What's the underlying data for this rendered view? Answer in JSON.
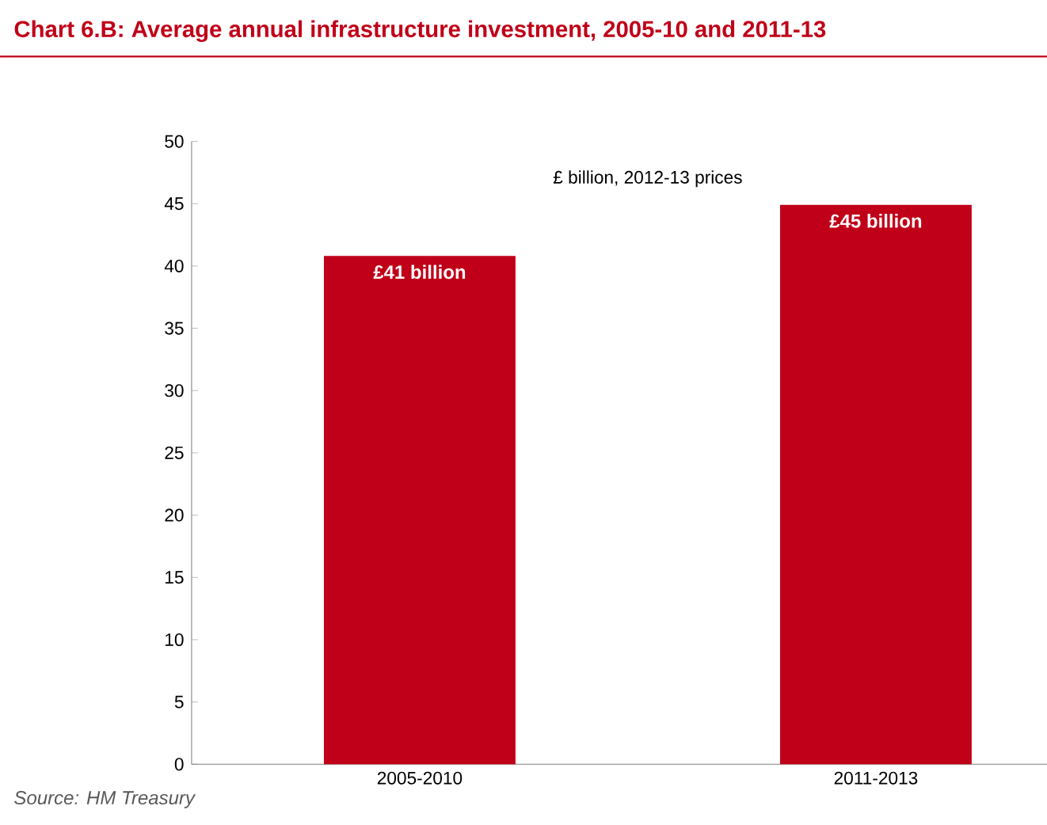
{
  "chart_data": {
    "type": "bar",
    "title": "Chart 6.B: Average annual infrastructure investment, 2005-10 and 2011-13",
    "subtitle": "£ billion,  2012-13 prices",
    "categories": [
      "2005-2010",
      "2011-2013"
    ],
    "values": [
      40.8,
      44.9
    ],
    "value_labels": [
      "£41 billion",
      "£45 billion"
    ],
    "color": "#c00018",
    "ylim": [
      0,
      50
    ],
    "yticks": [
      0,
      5,
      10,
      15,
      20,
      25,
      30,
      35,
      40,
      45,
      50
    ],
    "annotations": [
      "Source: HM Treasury"
    ]
  }
}
